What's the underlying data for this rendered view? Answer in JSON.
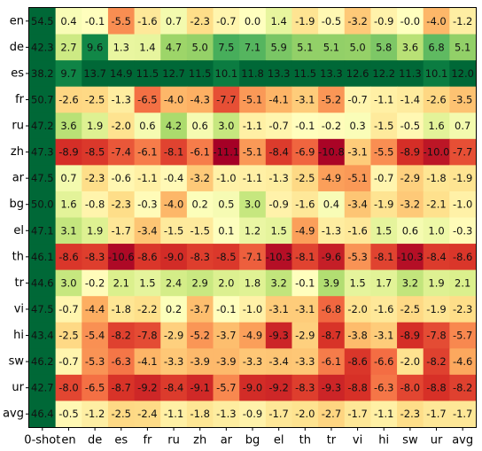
{
  "chart_data": {
    "type": "heatmap",
    "title": "",
    "xlabel": "",
    "ylabel": "",
    "columns": [
      "0-shot",
      "en",
      "de",
      "es",
      "fr",
      "ru",
      "zh",
      "ar",
      "bg",
      "el",
      "th",
      "tr",
      "vi",
      "hi",
      "sw",
      "ur",
      "avg"
    ],
    "rows": [
      "en",
      "de",
      "es",
      "fr",
      "ru",
      "zh",
      "ar",
      "bg",
      "el",
      "th",
      "tr",
      "vi",
      "hi",
      "sw",
      "ur",
      "avg"
    ],
    "values": [
      [
        "54.5",
        "0.4",
        "-0.1",
        "-5.5",
        "-1.6",
        "0.7",
        "-2.3",
        "-0.7",
        "0.0",
        "1.4",
        "-1.9",
        "-0.5",
        "-3.2",
        "-0.9",
        "-0.0",
        "-4.0",
        "-1.2"
      ],
      [
        "42.3",
        "2.7",
        "9.6",
        "1.3",
        "1.4",
        "4.7",
        "5.0",
        "7.5",
        "7.1",
        "5.9",
        "5.1",
        "5.1",
        "5.0",
        "5.8",
        "3.6",
        "6.8",
        "5.1"
      ],
      [
        "38.2",
        "9.7",
        "13.7",
        "14.9",
        "11.5",
        "12.7",
        "11.5",
        "10.1",
        "11.8",
        "13.3",
        "11.5",
        "13.3",
        "12.6",
        "12.2",
        "11.3",
        "10.1",
        "12.0"
      ],
      [
        "50.7",
        "-2.6",
        "-2.5",
        "-1.3",
        "-6.5",
        "-4.0",
        "-4.3",
        "-7.7",
        "-5.1",
        "-4.1",
        "-3.1",
        "-5.2",
        "-0.7",
        "-1.1",
        "-1.4",
        "-2.6",
        "-3.5"
      ],
      [
        "47.2",
        "3.6",
        "1.9",
        "-2.0",
        "0.6",
        "4.2",
        "0.6",
        "3.0",
        "-1.1",
        "-0.7",
        "-0.1",
        "-0.2",
        "0.3",
        "-1.5",
        "-0.5",
        "1.6",
        "0.7"
      ],
      [
        "47.3",
        "-8.9",
        "-8.5",
        "-7.4",
        "-6.1",
        "-8.1",
        "-6.1",
        "-11.1",
        "-5.1",
        "-8.4",
        "-6.9",
        "-10.8",
        "-3.1",
        "-5.5",
        "-8.9",
        "-10.0",
        "-7.7"
      ],
      [
        "47.5",
        "0.7",
        "-2.3",
        "-0.6",
        "-1.1",
        "-0.4",
        "-3.2",
        "-1.0",
        "-1.1",
        "-1.3",
        "-2.5",
        "-4.9",
        "-5.1",
        "-0.7",
        "-2.9",
        "-1.8",
        "-1.9"
      ],
      [
        "50.0",
        "1.6",
        "-0.8",
        "-2.3",
        "-0.3",
        "-4.0",
        "0.2",
        "0.5",
        "3.0",
        "-0.9",
        "-1.6",
        "0.4",
        "-3.4",
        "-1.9",
        "-3.2",
        "-2.1",
        "-1.0"
      ],
      [
        "47.1",
        "3.1",
        "1.9",
        "-1.7",
        "-3.4",
        "-1.5",
        "-1.5",
        "0.1",
        "1.2",
        "1.5",
        "-4.9",
        "-1.3",
        "-1.6",
        "1.5",
        "0.6",
        "1.0",
        "-0.3"
      ],
      [
        "46.1",
        "-8.6",
        "-8.3",
        "-10.6",
        "-8.6",
        "-9.0",
        "-8.3",
        "-8.5",
        "-7.1",
        "-10.3",
        "-8.1",
        "-9.6",
        "-5.3",
        "-8.1",
        "-10.3",
        "-8.4",
        "-8.6"
      ],
      [
        "44.6",
        "3.0",
        "-0.2",
        "2.1",
        "1.5",
        "2.4",
        "2.9",
        "2.0",
        "1.8",
        "3.2",
        "-0.1",
        "3.9",
        "1.5",
        "1.7",
        "3.2",
        "1.9",
        "2.1"
      ],
      [
        "47.5",
        "-0.7",
        "-4.4",
        "-1.8",
        "-2.2",
        "0.2",
        "-3.7",
        "-0.1",
        "-1.0",
        "-3.1",
        "-3.1",
        "-6.8",
        "-2.0",
        "-1.6",
        "-2.5",
        "-1.9",
        "-2.3"
      ],
      [
        "43.4",
        "-2.5",
        "-5.4",
        "-8.2",
        "-7.8",
        "-2.9",
        "-5.2",
        "-3.7",
        "-4.9",
        "-9.3",
        "-2.9",
        "-8.7",
        "-3.8",
        "-3.1",
        "-8.9",
        "-7.8",
        "-5.7"
      ],
      [
        "46.2",
        "-0.7",
        "-5.3",
        "-6.3",
        "-4.1",
        "-3.3",
        "-3.9",
        "-3.9",
        "-3.3",
        "-3.4",
        "-3.3",
        "-6.1",
        "-8.6",
        "-6.6",
        "-2.0",
        "-8.2",
        "-4.6"
      ],
      [
        "42.7",
        "-8.0",
        "-6.5",
        "-8.7",
        "-9.2",
        "-8.4",
        "-9.1",
        "-5.7",
        "-9.0",
        "-9.2",
        "-8.3",
        "-9.3",
        "-8.8",
        "-6.3",
        "-8.0",
        "-8.8",
        "-8.2"
      ],
      [
        "46.4",
        "-0.5",
        "-1.2",
        "-2.5",
        "-2.4",
        "-1.1",
        "-1.8",
        "-1.3",
        "-0.9",
        "-1.7",
        "-2.0",
        "-2.7",
        "-1.7",
        "-1.1",
        "-2.3",
        "-1.7",
        "-1.7"
      ]
    ],
    "zero_shot_color": "#006837",
    "colormap": "RdYlGn",
    "color_range": [
      -11,
      11
    ]
  }
}
